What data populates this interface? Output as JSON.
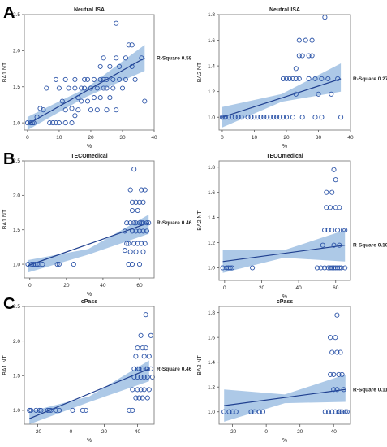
{
  "panel_letters": [
    "A",
    "B",
    "C"
  ],
  "styles": {
    "point_color": "#2c54a8",
    "line_color": "#1f3f8f",
    "band_color": "#9fbfe3",
    "frame_color": "#7f7f7f"
  },
  "chart_data": [
    {
      "type": "scatter",
      "title": "NeutraLISA",
      "xlabel": "%",
      "ylabel": "BA1 NT",
      "annotation": "R-Square 0.58",
      "xlim": [
        -1,
        40
      ],
      "ylim": [
        0.9,
        2.5
      ],
      "xticks": [
        0,
        10,
        20,
        30,
        40
      ],
      "yticks": [
        1.0,
        1.5,
        2.0,
        2.5
      ],
      "ytick_labels": [
        "1.0",
        "1.5",
        "2.0",
        "2.5"
      ],
      "fit": {
        "x0": 0,
        "x1": 37,
        "y0": 0.98,
        "y1": 1.9
      },
      "band": {
        "lower0": 0.9,
        "upper0": 1.08,
        "lowerm": 1.36,
        "upperm": 1.48,
        "lower1": 1.72,
        "upper1": 2.08
      },
      "points": [
        [
          0,
          1.0
        ],
        [
          1,
          1.0
        ],
        [
          1.5,
          1.0
        ],
        [
          2,
          1.0
        ],
        [
          3,
          1.08
        ],
        [
          4,
          1.2
        ],
        [
          5,
          1.18
        ],
        [
          6,
          1.48
        ],
        [
          7,
          1.0
        ],
        [
          8,
          1.0
        ],
        [
          9,
          1.0
        ],
        [
          9,
          1.6
        ],
        [
          10,
          1.48
        ],
        [
          10,
          1.0
        ],
        [
          11,
          1.3
        ],
        [
          12,
          1.18
        ],
        [
          12,
          1.0
        ],
        [
          12,
          1.6
        ],
        [
          13,
          1.48
        ],
        [
          14,
          1.0
        ],
        [
          14,
          1.2
        ],
        [
          15,
          1.1
        ],
        [
          15,
          1.48
        ],
        [
          15,
          1.6
        ],
        [
          16,
          1.18
        ],
        [
          16,
          1.35
        ],
        [
          17,
          1.48
        ],
        [
          17,
          1.3
        ],
        [
          18,
          1.6
        ],
        [
          18,
          1.48
        ],
        [
          19,
          1.3
        ],
        [
          19,
          1.6
        ],
        [
          20,
          1.48
        ],
        [
          20,
          1.18
        ],
        [
          21,
          1.35
        ],
        [
          21,
          1.6
        ],
        [
          22,
          1.48
        ],
        [
          22,
          1.18
        ],
        [
          23,
          1.35
        ],
        [
          23,
          1.6
        ],
        [
          23,
          1.78
        ],
        [
          24,
          1.48
        ],
        [
          24,
          1.6
        ],
        [
          24,
          1.9
        ],
        [
          25,
          1.18
        ],
        [
          25,
          1.48
        ],
        [
          25,
          1.6
        ],
        [
          26,
          1.78
        ],
        [
          26,
          1.35
        ],
        [
          27,
          1.6
        ],
        [
          27,
          1.48
        ],
        [
          28,
          1.18
        ],
        [
          28,
          1.9
        ],
        [
          28,
          2.38
        ],
        [
          29,
          1.78
        ],
        [
          29,
          1.6
        ],
        [
          30,
          1.48
        ],
        [
          31,
          1.9
        ],
        [
          31,
          1.6
        ],
        [
          32,
          2.08
        ],
        [
          33,
          2.08
        ],
        [
          33,
          1.78
        ],
        [
          34,
          1.6
        ],
        [
          36,
          1.9
        ],
        [
          37,
          1.3
        ]
      ]
    },
    {
      "type": "scatter",
      "title": "NeutraLISA",
      "xlabel": "%",
      "ylabel": "BA2 NT",
      "annotation": "R-Square 0.27",
      "xlim": [
        -1,
        40
      ],
      "ylim": [
        0.9,
        1.8
      ],
      "xticks": [
        0,
        10,
        20,
        30,
        40
      ],
      "yticks": [
        1.0,
        1.2,
        1.4,
        1.6,
        1.8
      ],
      "ytick_labels": [
        "1.0",
        "1.2",
        "1.4",
        "1.6",
        "1.8"
      ],
      "fit": {
        "x0": 0,
        "x1": 37,
        "y0": 1.0,
        "y1": 1.3
      },
      "band": {
        "lower0": 0.92,
        "upper0": 1.08,
        "lowerm": 1.12,
        "upperm": 1.18,
        "lower1": 1.2,
        "upper1": 1.42
      },
      "points": [
        [
          0,
          1.0
        ],
        [
          0.5,
          1.0
        ],
        [
          1,
          1.0
        ],
        [
          2,
          1.0
        ],
        [
          3,
          1.0
        ],
        [
          4,
          1.0
        ],
        [
          5,
          1.0
        ],
        [
          6,
          1.0
        ],
        [
          8,
          1.0
        ],
        [
          9,
          1.0
        ],
        [
          10,
          1.0
        ],
        [
          11,
          1.0
        ],
        [
          12,
          1.0
        ],
        [
          13,
          1.0
        ],
        [
          14,
          1.0
        ],
        [
          15,
          1.0
        ],
        [
          16,
          1.0
        ],
        [
          17,
          1.0
        ],
        [
          18,
          1.0
        ],
        [
          19,
          1.0
        ],
        [
          19,
          1.3
        ],
        [
          20,
          1.0
        ],
        [
          20,
          1.3
        ],
        [
          21,
          1.3
        ],
        [
          22,
          1.0
        ],
        [
          22,
          1.3
        ],
        [
          23,
          1.18
        ],
        [
          23,
          1.3
        ],
        [
          23,
          1.38
        ],
        [
          24,
          1.48
        ],
        [
          24,
          1.6
        ],
        [
          24,
          1.3
        ],
        [
          25,
          1.48
        ],
        [
          25,
          1.0
        ],
        [
          26,
          1.6
        ],
        [
          27,
          1.3
        ],
        [
          27,
          1.48
        ],
        [
          28,
          1.48
        ],
        [
          28,
          1.6
        ],
        [
          29,
          1.3
        ],
        [
          29,
          1.0
        ],
        [
          30,
          1.18
        ],
        [
          31,
          1.3
        ],
        [
          31,
          1.0
        ],
        [
          32,
          1.78
        ],
        [
          33,
          1.3
        ],
        [
          34,
          1.18
        ],
        [
          36,
          1.3
        ],
        [
          37,
          1.0
        ]
      ]
    },
    {
      "type": "scatter",
      "title": "TECOmedical",
      "xlabel": "%",
      "ylabel": "BA1 NT",
      "annotation": "R-Square 0.46",
      "xlim": [
        -3,
        68
      ],
      "ylim": [
        0.8,
        2.5
      ],
      "xticks": [
        0,
        20,
        40,
        60
      ],
      "yticks": [
        1.0,
        1.5,
        2.0,
        2.5
      ],
      "ytick_labels": [
        "1.0",
        "1.5",
        "2.0",
        "2.5"
      ],
      "fit": {
        "x0": -1,
        "x1": 65,
        "y0": 0.98,
        "y1": 1.6
      },
      "band": {
        "lower0": 0.88,
        "upper0": 1.06,
        "lowerm": 1.14,
        "upperm": 1.22,
        "lower1": 1.44,
        "upper1": 1.72
      },
      "points": [
        [
          -1,
          1.0
        ],
        [
          1,
          1.0
        ],
        [
          2,
          1.0
        ],
        [
          3,
          1.0
        ],
        [
          4,
          1.0
        ],
        [
          5,
          1.0
        ],
        [
          7,
          1.0
        ],
        [
          15,
          1.0
        ],
        [
          16,
          1.0
        ],
        [
          24,
          1.0
        ],
        [
          52,
          1.2
        ],
        [
          52,
          1.48
        ],
        [
          53,
          1.3
        ],
        [
          53,
          1.6
        ],
        [
          54,
          1.0
        ],
        [
          54,
          1.3
        ],
        [
          55,
          1.6
        ],
        [
          55,
          1.18
        ],
        [
          55,
          2.08
        ],
        [
          56,
          1.48
        ],
        [
          56,
          1.0
        ],
        [
          56,
          1.78
        ],
        [
          56,
          1.9
        ],
        [
          57,
          1.6
        ],
        [
          57,
          1.3
        ],
        [
          57,
          2.38
        ],
        [
          58,
          1.48
        ],
        [
          58,
          1.18
        ],
        [
          58,
          1.6
        ],
        [
          58,
          1.9
        ],
        [
          59,
          1.3
        ],
        [
          59,
          1.78
        ],
        [
          60,
          1.6
        ],
        [
          60,
          1.48
        ],
        [
          60,
          1.0
        ],
        [
          60,
          1.9
        ],
        [
          61,
          2.08
        ],
        [
          61,
          1.3
        ],
        [
          61,
          1.6
        ],
        [
          62,
          1.18
        ],
        [
          62,
          1.48
        ],
        [
          62,
          1.9
        ],
        [
          62,
          1.6
        ],
        [
          63,
          2.08
        ],
        [
          63,
          1.3
        ],
        [
          64,
          1.6
        ],
        [
          64,
          1.48
        ],
        [
          65,
          1.6
        ]
      ]
    },
    {
      "type": "scatter",
      "title": "TECOmedical",
      "xlabel": "%",
      "ylabel": "BA2 NT",
      "annotation": "R-Square 0.10",
      "xlim": [
        -3,
        68
      ],
      "ylim": [
        0.9,
        1.85
      ],
      "xticks": [
        0,
        20,
        40,
        60
      ],
      "yticks": [
        1.0,
        1.2,
        1.4,
        1.6,
        1.8
      ],
      "ytick_labels": [
        "1.0",
        "1.2",
        "1.4",
        "1.6",
        "1.8"
      ],
      "fit": {
        "x0": -1,
        "x1": 65,
        "y0": 1.05,
        "y1": 1.18
      },
      "band": {
        "lower0": 0.96,
        "upper0": 1.14,
        "lowerm": 1.08,
        "upperm": 1.14,
        "lower1": 1.05,
        "upper1": 1.3
      },
      "points": [
        [
          -1,
          1.0
        ],
        [
          1,
          1.0
        ],
        [
          2,
          1.0
        ],
        [
          3,
          1.0
        ],
        [
          4,
          1.0
        ],
        [
          15,
          1.0
        ],
        [
          50,
          1.0
        ],
        [
          52,
          1.0
        ],
        [
          53,
          1.18
        ],
        [
          54,
          1.0
        ],
        [
          54,
          1.3
        ],
        [
          55,
          1.48
        ],
        [
          55,
          1.6
        ],
        [
          56,
          1.0
        ],
        [
          56,
          1.3
        ],
        [
          57,
          1.0
        ],
        [
          57,
          1.48
        ],
        [
          58,
          1.0
        ],
        [
          58,
          1.3
        ],
        [
          58,
          1.6
        ],
        [
          59,
          1.0
        ],
        [
          59,
          1.18
        ],
        [
          59,
          1.78
        ],
        [
          60,
          1.0
        ],
        [
          60,
          1.48
        ],
        [
          60,
          1.7
        ],
        [
          61,
          1.0
        ],
        [
          61,
          1.3
        ],
        [
          62,
          1.18
        ],
        [
          62,
          1.48
        ],
        [
          62,
          1.0
        ],
        [
          63,
          1.0
        ],
        [
          64,
          1.3
        ],
        [
          65,
          1.3
        ],
        [
          65,
          1.0
        ]
      ]
    },
    {
      "type": "scatter",
      "title": "cPass",
      "xlabel": "%",
      "ylabel": "BA1 NT",
      "annotation": "R-Square 0.46",
      "xlim": [
        -28,
        50
      ],
      "ylim": [
        0.8,
        2.5
      ],
      "xticks": [
        -20,
        0,
        20,
        40
      ],
      "yticks": [
        1.0,
        1.5,
        2.0,
        2.5
      ],
      "ytick_labels": [
        "1.0",
        "1.5",
        "2.0",
        "2.5"
      ],
      "fit": {
        "x0": -25,
        "x1": 47,
        "y0": 0.88,
        "y1": 1.6
      },
      "band": {
        "lower0": 0.8,
        "upper0": 0.98,
        "lowerm": 1.12,
        "upperm": 1.2,
        "lower1": 1.42,
        "upper1": 1.72
      },
      "points": [
        [
          -25,
          1.0
        ],
        [
          -24,
          1.0
        ],
        [
          -21,
          1.0
        ],
        [
          -19,
          1.0
        ],
        [
          -18,
          1.0
        ],
        [
          -14,
          1.0
        ],
        [
          -13,
          1.0
        ],
        [
          -12,
          1.0
        ],
        [
          -9,
          1.0
        ],
        [
          -7,
          1.0
        ],
        [
          1,
          1.0
        ],
        [
          7,
          1.0
        ],
        [
          9,
          1.0
        ],
        [
          35,
          1.0
        ],
        [
          37,
          1.0
        ],
        [
          37,
          1.3
        ],
        [
          38,
          1.48
        ],
        [
          38,
          1.6
        ],
        [
          39,
          1.18
        ],
        [
          39,
          1.78
        ],
        [
          40,
          1.3
        ],
        [
          40,
          1.48
        ],
        [
          40,
          1.6
        ],
        [
          40,
          1.9
        ],
        [
          41,
          1.18
        ],
        [
          41,
          1.6
        ],
        [
          42,
          1.48
        ],
        [
          42,
          1.3
        ],
        [
          42,
          2.08
        ],
        [
          43,
          1.6
        ],
        [
          43,
          1.9
        ],
        [
          43,
          1.18
        ],
        [
          44,
          1.48
        ],
        [
          44,
          1.78
        ],
        [
          44,
          1.3
        ],
        [
          45,
          2.38
        ],
        [
          45,
          1.6
        ],
        [
          45,
          1.9
        ],
        [
          46,
          1.48
        ],
        [
          46,
          1.18
        ],
        [
          46,
          1.6
        ],
        [
          47,
          1.78
        ],
        [
          47,
          1.3
        ],
        [
          48,
          2.08
        ],
        [
          48,
          1.6
        ],
        [
          49,
          1.48
        ]
      ]
    },
    {
      "type": "scatter",
      "title": "cPass",
      "xlabel": "%",
      "ylabel": "BA2 NT",
      "annotation": "R-Square 0.11",
      "xlim": [
        -28,
        50
      ],
      "ylim": [
        0.9,
        1.85
      ],
      "xticks": [
        -20,
        0,
        20,
        40
      ],
      "yticks": [
        1.0,
        1.2,
        1.4,
        1.6,
        1.8
      ],
      "ytick_labels": [
        "1.0",
        "1.2",
        "1.4",
        "1.6",
        "1.8"
      ],
      "fit": {
        "x0": -25,
        "x1": 47,
        "y0": 1.05,
        "y1": 1.18
      },
      "band": {
        "lower0": 0.92,
        "upper0": 1.18,
        "lowerm": 1.07,
        "upperm": 1.14,
        "lower1": 1.08,
        "upper1": 1.3
      },
      "points": [
        [
          -25,
          1.0
        ],
        [
          -22,
          1.0
        ],
        [
          -20,
          1.0
        ],
        [
          -18,
          1.0
        ],
        [
          -9,
          1.0
        ],
        [
          -7,
          1.0
        ],
        [
          -4,
          1.0
        ],
        [
          -2,
          1.0
        ],
        [
          35,
          1.0
        ],
        [
          37,
          1.0
        ],
        [
          38,
          1.3
        ],
        [
          38,
          1.6
        ],
        [
          39,
          1.0
        ],
        [
          39,
          1.48
        ],
        [
          40,
          1.18
        ],
        [
          40,
          1.3
        ],
        [
          41,
          1.0
        ],
        [
          41,
          1.6
        ],
        [
          42,
          1.48
        ],
        [
          42,
          1.18
        ],
        [
          42,
          1.78
        ],
        [
          43,
          1.0
        ],
        [
          43,
          1.3
        ],
        [
          44,
          1.0
        ],
        [
          44,
          1.48
        ],
        [
          45,
          1.3
        ],
        [
          45,
          1.0
        ],
        [
          46,
          1.18
        ],
        [
          47,
          1.0
        ],
        [
          48,
          1.0
        ]
      ]
    }
  ]
}
